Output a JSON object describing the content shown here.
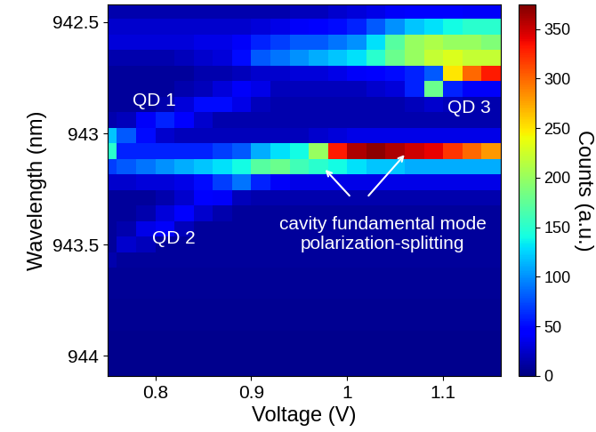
{
  "chart_data": {
    "type": "heatmap",
    "xlabel": "Voltage (V)",
    "ylabel": "Wavelength (nm)",
    "color": "jet",
    "x": [
      0.75,
      0.77,
      0.79,
      0.81,
      0.83,
      0.85,
      0.87,
      0.89,
      0.91,
      0.93,
      0.95,
      0.97,
      0.99,
      1.01,
      1.03,
      1.05,
      1.07,
      1.09,
      1.11,
      1.13,
      1.15
    ],
    "y": [
      942.45,
      942.52,
      942.59,
      942.66,
      942.73,
      942.8,
      942.87,
      942.94,
      943.01,
      943.08,
      943.15,
      943.22,
      943.29,
      943.36,
      943.43,
      943.5,
      943.57,
      943.64,
      943.71,
      943.78,
      943.85,
      943.92,
      943.99,
      944.06
    ],
    "cells": [
      [
        15,
        15,
        15,
        15,
        15,
        15,
        15,
        15,
        15,
        15,
        20,
        20,
        25,
        30,
        35,
        40,
        45,
        45,
        45,
        40,
        40
      ],
      [
        25,
        25,
        25,
        25,
        25,
        25,
        25,
        25,
        30,
        35,
        40,
        45,
        50,
        60,
        80,
        100,
        120,
        130,
        140,
        150,
        150
      ],
      [
        30,
        30,
        30,
        30,
        30,
        35,
        35,
        40,
        60,
        70,
        80,
        80,
        90,
        100,
        130,
        170,
        200,
        210,
        200,
        200,
        190
      ],
      [
        15,
        15,
        15,
        15,
        20,
        25,
        30,
        50,
        80,
        90,
        100,
        110,
        120,
        130,
        150,
        180,
        200,
        220,
        230,
        220,
        220
      ],
      [
        10,
        10,
        10,
        10,
        10,
        15,
        15,
        20,
        25,
        25,
        30,
        30,
        35,
        40,
        45,
        50,
        60,
        80,
        250,
        300,
        330
      ],
      [
        10,
        10,
        10,
        10,
        15,
        20,
        30,
        40,
        35,
        20,
        20,
        20,
        20,
        20,
        25,
        30,
        60,
        180,
        60,
        40,
        40
      ],
      [
        10,
        10,
        10,
        15,
        30,
        50,
        50,
        35,
        20,
        15,
        15,
        15,
        15,
        15,
        15,
        15,
        20,
        25,
        20,
        15,
        15
      ],
      [
        15,
        20,
        40,
        60,
        45,
        25,
        15,
        15,
        15,
        15,
        15,
        15,
        15,
        15,
        15,
        15,
        15,
        15,
        15,
        15,
        15
      ],
      [
        120,
        80,
        50,
        25,
        20,
        20,
        20,
        20,
        20,
        20,
        20,
        25,
        30,
        35,
        35,
        35,
        35,
        35,
        35,
        35,
        35
      ],
      [
        150,
        60,
        60,
        60,
        60,
        60,
        70,
        80,
        110,
        130,
        140,
        200,
        330,
        360,
        370,
        360,
        350,
        340,
        320,
        300,
        280
      ],
      [
        70,
        80,
        90,
        100,
        110,
        120,
        130,
        140,
        170,
        180,
        160,
        150,
        140,
        130,
        120,
        120,
        110,
        110,
        110,
        110,
        110
      ],
      [
        25,
        25,
        30,
        30,
        35,
        50,
        70,
        90,
        60,
        40,
        35,
        35,
        35,
        35,
        35,
        35,
        35,
        35,
        35,
        35,
        35
      ],
      [
        10,
        10,
        10,
        15,
        25,
        45,
        40,
        20,
        15,
        15,
        15,
        15,
        15,
        15,
        15,
        15,
        15,
        15,
        15,
        15,
        15
      ],
      [
        10,
        10,
        15,
        30,
        45,
        25,
        15,
        10,
        10,
        10,
        10,
        10,
        10,
        10,
        10,
        10,
        10,
        10,
        10,
        10,
        10
      ],
      [
        10,
        15,
        35,
        40,
        20,
        10,
        10,
        10,
        10,
        10,
        10,
        10,
        10,
        10,
        10,
        10,
        10,
        10,
        10,
        10,
        10
      ],
      [
        10,
        25,
        20,
        10,
        10,
        10,
        10,
        10,
        10,
        10,
        10,
        10,
        10,
        10,
        10,
        10,
        10,
        10,
        10,
        10,
        10
      ],
      [
        15,
        10,
        10,
        10,
        10,
        10,
        10,
        10,
        10,
        10,
        10,
        10,
        10,
        10,
        10,
        10,
        10,
        10,
        10,
        10,
        10
      ],
      [
        8,
        8,
        8,
        8,
        8,
        8,
        8,
        8,
        8,
        8,
        8,
        8,
        8,
        8,
        8,
        8,
        8,
        8,
        8,
        8,
        8
      ],
      [
        8,
        8,
        8,
        8,
        8,
        8,
        8,
        8,
        8,
        8,
        8,
        8,
        8,
        8,
        8,
        8,
        8,
        8,
        8,
        8,
        8
      ],
      [
        6,
        6,
        6,
        6,
        6,
        6,
        6,
        6,
        6,
        6,
        6,
        6,
        6,
        6,
        6,
        6,
        6,
        6,
        6,
        6,
        6
      ],
      [
        6,
        6,
        6,
        6,
        6,
        6,
        6,
        6,
        6,
        6,
        6,
        6,
        6,
        6,
        6,
        6,
        6,
        6,
        6,
        6,
        6
      ],
      [
        5,
        5,
        5,
        5,
        5,
        5,
        5,
        5,
        5,
        5,
        5,
        5,
        5,
        5,
        5,
        5,
        5,
        5,
        5,
        5,
        5
      ],
      [
        5,
        5,
        5,
        5,
        5,
        5,
        5,
        5,
        5,
        5,
        5,
        5,
        5,
        5,
        5,
        5,
        5,
        5,
        5,
        5,
        5
      ],
      [
        5,
        5,
        5,
        5,
        5,
        5,
        5,
        5,
        5,
        5,
        5,
        5,
        5,
        5,
        5,
        5,
        5,
        5,
        5,
        5,
        5
      ]
    ],
    "xlim": [
      0.75,
      1.16
    ],
    "xticks": [
      0.8,
      0.9,
      1,
      1.1
    ],
    "ylim": [
      944.09,
      942.42
    ],
    "yticks": [
      942.5,
      943,
      943.5,
      944
    ],
    "colorbar": {
      "label": "Counts (a.u.)",
      "range": [
        0,
        375
      ],
      "ticks": [
        0,
        50,
        100,
        150,
        200,
        250,
        300,
        350
      ]
    },
    "annotations": [
      {
        "text": "QD 1"
      },
      {
        "text": "QD 2"
      },
      {
        "text": "QD 3"
      },
      {
        "text": "cavity fundamental mode\npolarization-splitting"
      }
    ]
  }
}
